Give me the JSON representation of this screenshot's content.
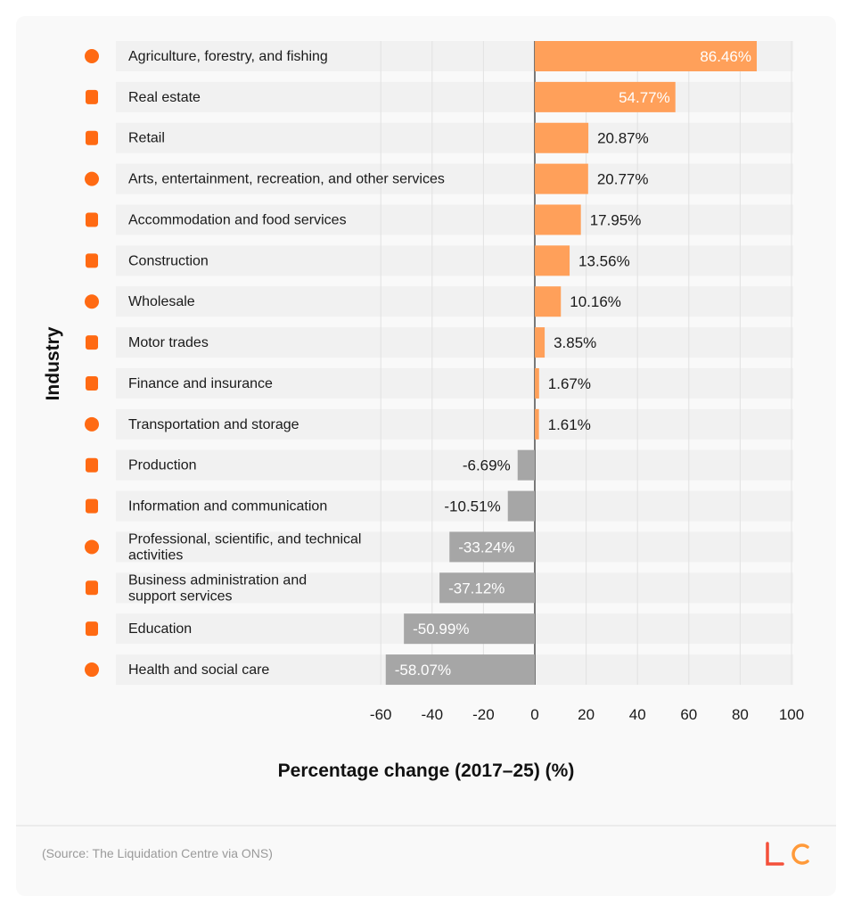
{
  "chart_data": {
    "type": "bar",
    "orientation": "horizontal",
    "categories": [
      "Agriculture, forestry, and fishing",
      "Real estate",
      "Retail",
      "Arts, entertainment, recreation, and other services",
      "Accommodation and food services",
      "Construction",
      "Wholesale",
      "Motor trades",
      "Finance and insurance",
      "Transportation and storage",
      "Production",
      "Information and communication",
      "Professional, scientific, and technical activities",
      "Business administration and support services",
      "Education",
      "Health and social care"
    ],
    "values": [
      86.46,
      54.77,
      20.87,
      20.77,
      17.95,
      13.56,
      10.16,
      3.85,
      1.67,
      1.61,
      -6.69,
      -10.51,
      -33.24,
      -37.12,
      -50.99,
      -58.07
    ],
    "data_labels": [
      "86.46%",
      "54.77%",
      "20.87%",
      "20.77%",
      "17.95%",
      "13.56%",
      "10.16%",
      "3.85%",
      "1.67%",
      "1.61%",
      "-6.69%",
      "-10.51%",
      "-33.24%",
      "-37.12%",
      "-50.99%",
      "-58.07%"
    ],
    "icons": [
      "leaf-icon",
      "building-icon",
      "shopping-bag-icon",
      "theater-masks-icon",
      "fork-knife-icon",
      "hammer-icon",
      "shopping-cart-icon",
      "car-icon",
      "bank-icon",
      "train-icon",
      "gear-icon",
      "info-chat-icon",
      "atom-icon",
      "briefcase-icon",
      "graduation-cap-icon",
      "medical-cross-icon"
    ],
    "xlabel": "Percentage change (2017–25) (%)",
    "ylabel": "Industry",
    "xlim": [
      -60,
      100
    ],
    "xticks": [
      "-60",
      "-40",
      "-20",
      "0",
      "20",
      "40",
      "60",
      "80",
      "100"
    ],
    "grid": true,
    "colors": {
      "positive": "#ffa05a",
      "negative": "#a6a6a6",
      "icon": "#ff6a13"
    }
  },
  "footer": {
    "source": "(Source: The Liquidation Centre via ONS)",
    "logo": "LC"
  }
}
